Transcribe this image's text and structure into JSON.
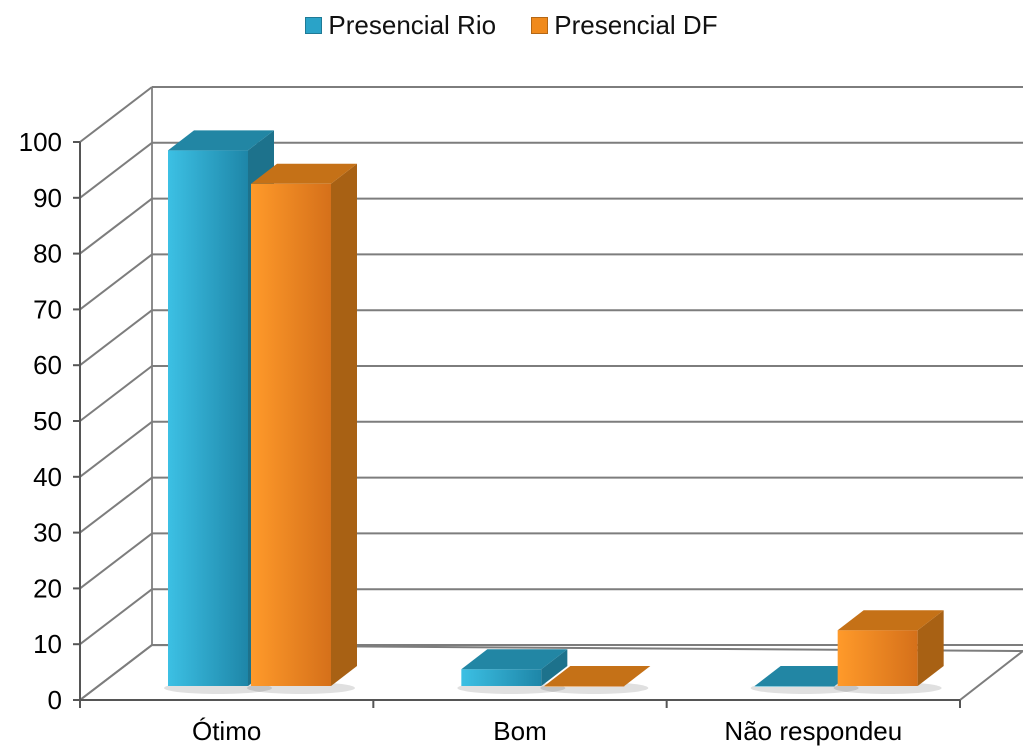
{
  "chart_data": {
    "type": "bar",
    "categories": [
      "Ótimo",
      "Bom",
      "Não respondeu"
    ],
    "series": [
      {
        "name": "Presencial Rio",
        "values": [
          96,
          3,
          0
        ],
        "color": "#2aa3c8"
      },
      {
        "name": "Presencial DF",
        "values": [
          90,
          0,
          10
        ],
        "color": "#f08a1c"
      }
    ],
    "ylim": [
      0,
      100
    ],
    "yticks": [
      "0",
      "10",
      "20",
      "30",
      "40",
      "50",
      "60",
      "70",
      "80",
      "90",
      "100"
    ],
    "grid": true,
    "legend_position": "top",
    "style": "3d-column"
  }
}
